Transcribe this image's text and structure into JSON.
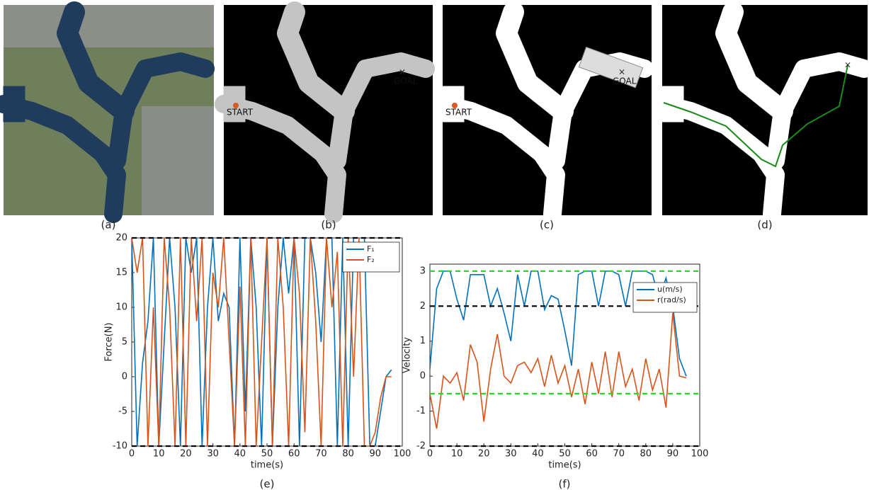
{
  "captions": [
    "(a)",
    "(b)",
    "(c)",
    "(d)",
    "(e)",
    "(f)"
  ],
  "maps": {
    "start": "START",
    "goal": "GOAL"
  },
  "chart_data": [
    {
      "type": "line",
      "xlabel": "time(s)",
      "ylabel": "Force(N)",
      "xlim": [
        0,
        100
      ],
      "xticks": [
        0,
        10,
        20,
        30,
        40,
        50,
        60,
        70,
        80,
        90,
        100
      ],
      "ylim": [
        -10,
        20
      ],
      "yticks": [
        -10,
        -5,
        0,
        5,
        10,
        15,
        20
      ],
      "hlines": [
        {
          "value": 20,
          "color": "#000000"
        },
        {
          "value": -10,
          "color": "#000000"
        }
      ],
      "legend": "upper right",
      "x": [
        0,
        2,
        4,
        6,
        8,
        10,
        12,
        14,
        16,
        18,
        20,
        22,
        24,
        26,
        28,
        30,
        32,
        34,
        36,
        38,
        40,
        42,
        44,
        46,
        48,
        50,
        52,
        54,
        56,
        58,
        60,
        62,
        64,
        66,
        68,
        70,
        72,
        74,
        76,
        78,
        80,
        82,
        84,
        86,
        88,
        90,
        92,
        94,
        96
      ],
      "series": [
        {
          "name": "F₁",
          "color": "#0072bd",
          "values": [
            20,
            -10,
            2,
            8,
            20,
            -10,
            5,
            20,
            10,
            -10,
            20,
            15,
            20,
            -10,
            10,
            20,
            8,
            12,
            10,
            -10,
            20,
            -5,
            20,
            10,
            -10,
            20,
            -10,
            10,
            20,
            12,
            20,
            -10,
            20,
            20,
            15,
            5,
            20,
            20,
            -10,
            20,
            -10,
            20,
            20,
            20,
            -10,
            -10,
            -5,
            0,
            1
          ]
        },
        {
          "name": "F₂",
          "color": "#d95319",
          "values": [
            20,
            15,
            20,
            -10,
            10,
            -10,
            20,
            10,
            -10,
            20,
            -10,
            20,
            8,
            20,
            -10,
            15,
            10,
            20,
            5,
            -10,
            13,
            -10,
            20,
            -10,
            5,
            20,
            -10,
            20,
            10,
            -10,
            20,
            12,
            -8,
            20,
            8,
            -10,
            20,
            10,
            18,
            -10,
            20,
            0,
            20,
            -10,
            -10,
            -8,
            -3,
            0,
            0
          ]
        }
      ]
    },
    {
      "type": "line",
      "xlabel": "time(s)",
      "ylabel": "Velocity",
      "xlim": [
        0,
        100
      ],
      "xticks": [
        0,
        10,
        20,
        30,
        40,
        50,
        60,
        70,
        80,
        90,
        100
      ],
      "ylim": [
        -2,
        3.2
      ],
      "yticks": [
        -2,
        -1,
        0,
        1,
        2,
        3
      ],
      "hlines": [
        {
          "value": 3,
          "color": "#22dd22"
        },
        {
          "value": 2,
          "color": "#000000"
        },
        {
          "value": -0.5,
          "color": "#22dd22"
        },
        {
          "value": -2,
          "color": "#000000"
        }
      ],
      "legend": "upper right",
      "x": [
        0,
        2.5,
        5,
        7.5,
        10,
        12.5,
        15,
        17.5,
        20,
        22.5,
        25,
        27.5,
        30,
        32.5,
        35,
        37.5,
        40,
        42.5,
        45,
        47.5,
        50,
        52.5,
        55,
        57.5,
        60,
        62.5,
        65,
        67.5,
        70,
        72.5,
        75,
        77.5,
        80,
        82.5,
        85,
        87.5,
        90,
        92.5,
        95
      ],
      "series": [
        {
          "name": "u(m/s)",
          "color": "#0072bd",
          "values": [
            0.2,
            2.5,
            3,
            3,
            2.2,
            1.6,
            2.9,
            2.9,
            2.9,
            2,
            2.5,
            1.8,
            1.0,
            2.9,
            2.0,
            3,
            3,
            1.9,
            2.3,
            2.2,
            1.3,
            0.3,
            2.9,
            3,
            3,
            2.0,
            3,
            3,
            2.9,
            2.0,
            3,
            3,
            3,
            2.9,
            2.2,
            2.8,
            2.0,
            0.5,
            0
          ]
        },
        {
          "name": "r(rad/s)",
          "color": "#d95319",
          "values": [
            -0.5,
            -1.5,
            0,
            -0.2,
            0.1,
            -0.7,
            0.9,
            0.4,
            -1.3,
            0.2,
            1.2,
            0,
            -0.2,
            0.3,
            0.4,
            0.1,
            0.5,
            -0.3,
            0.6,
            -0.2,
            0.3,
            -0.6,
            0.2,
            -0.8,
            0.4,
            -0.5,
            0.7,
            -0.6,
            0.7,
            -0.3,
            0.2,
            -0.7,
            0.5,
            -0.4,
            0.2,
            -0.9,
            1.8,
            0,
            -0.05
          ]
        }
      ]
    }
  ]
}
